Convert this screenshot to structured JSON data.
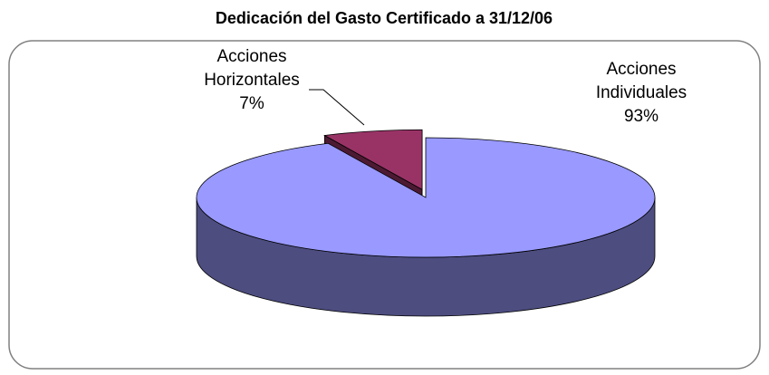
{
  "chart_data": {
    "type": "pie3d",
    "title": "Dedicación del Gasto Certificado a 31/12/06",
    "categories": [
      "Acciones Horizontales",
      "Acciones Individuales"
    ],
    "values": [
      7,
      93
    ],
    "value_labels": [
      "7%",
      "93%"
    ],
    "colors": [
      "#993366",
      "#9999ff"
    ]
  }
}
